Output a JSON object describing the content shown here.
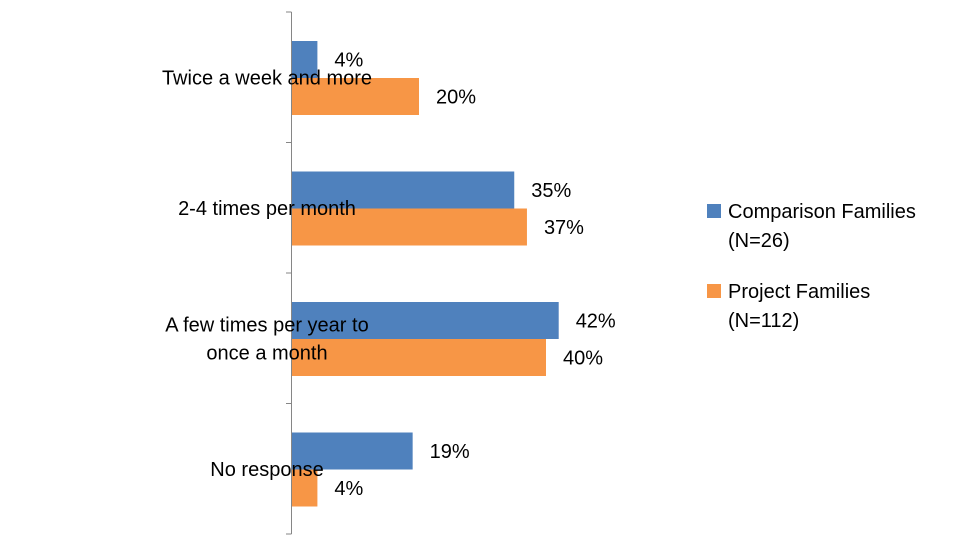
{
  "chart_data": {
    "type": "bar",
    "orientation": "horizontal",
    "categories": [
      [
        "Twice a week and more"
      ],
      [
        "2-4 times per month"
      ],
      [
        "A few times per year to",
        "once a month"
      ],
      [
        "No response"
      ]
    ],
    "series": [
      {
        "name": [
          "Comparison Families",
          "(N=26)"
        ],
        "color": "#4F81BD",
        "values": [
          4,
          35,
          42,
          19
        ]
      },
      {
        "name": [
          "Project Families",
          "(N=112)"
        ],
        "color": "#F79646",
        "values": [
          20,
          37,
          40,
          4
        ]
      }
    ],
    "value_suffix": "%",
    "xlim": [
      0,
      45
    ],
    "grid": false,
    "legend_position": "right"
  }
}
